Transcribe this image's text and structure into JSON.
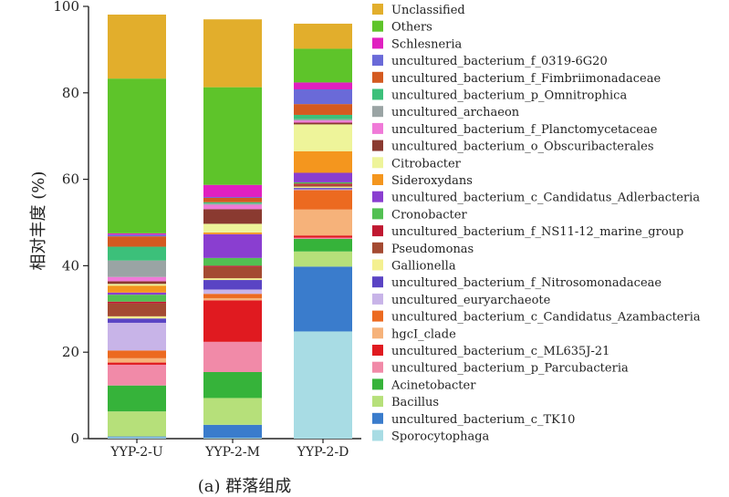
{
  "chart_data": {
    "type": "bar",
    "stacked": true,
    "categories": [
      "YYP-2-U",
      "YYP-2-M",
      "YYP-2-D"
    ],
    "ylabel": "相对丰度 (%)",
    "caption": "(a) 群落组成",
    "ylim": [
      0,
      100
    ],
    "yticks": [
      0,
      20,
      40,
      60,
      80,
      100
    ],
    "legend_position": "right",
    "series": [
      {
        "name": "Sporocytophaga",
        "color": "#a8dce4",
        "values": [
          0.3,
          0.2,
          24.8
        ]
      },
      {
        "name": "uncultured_bacterium_c_TK10",
        "color": "#3a7ccc",
        "values": [
          0.2,
          3.0,
          15.0
        ]
      },
      {
        "name": "Bacillus",
        "color": "#b6e07a",
        "values": [
          5.8,
          6.2,
          3.5
        ]
      },
      {
        "name": "Acinetobacter",
        "color": "#36b33a",
        "values": [
          6.0,
          6.0,
          2.9
        ]
      },
      {
        "name": "uncultured_bacterium_p_Parcubacteria",
        "color": "#f18aa8",
        "values": [
          4.8,
          7.0,
          0.3
        ]
      },
      {
        "name": "uncultured_bacterium_c_ML635J-21",
        "color": "#e01a20",
        "values": [
          0.5,
          9.6,
          0.5
        ]
      },
      {
        "name": "hgcI_clade",
        "color": "#f6b27a",
        "values": [
          1.0,
          0.5,
          6.0
        ]
      },
      {
        "name": "uncultured_bacterium_c_Candidatus_Azambacteria",
        "color": "#ec6a20",
        "values": [
          1.8,
          1.0,
          4.5
        ]
      },
      {
        "name": "uncultured_euryarchaeote",
        "color": "#c8b4e8",
        "values": [
          6.4,
          1.0,
          0.2
        ]
      },
      {
        "name": "uncultured_bacterium_f_Nitrosomonadaceae",
        "color": "#5a44c4",
        "values": [
          1.0,
          2.2,
          0.3
        ]
      },
      {
        "name": "Gallionella",
        "color": "#f4f090",
        "values": [
          0.5,
          0.4,
          0.3
        ]
      },
      {
        "name": "Pseudomonas",
        "color": "#a44a32",
        "values": [
          3.0,
          2.6,
          0.4
        ]
      },
      {
        "name": "uncultured_bacterium_f_NS11-12_marine_group",
        "color": "#c01830",
        "values": [
          0.4,
          0.3,
          0.3
        ]
      },
      {
        "name": "Cronobacter",
        "color": "#52c052",
        "values": [
          1.6,
          1.8,
          0.3
        ]
      },
      {
        "name": "uncultured_bacterium_c_Candidatus_Adlerbacteria",
        "color": "#8a3ed0",
        "values": [
          0.5,
          5.5,
          2.2
        ]
      },
      {
        "name": "Sideroxydans",
        "color": "#f4961e",
        "values": [
          1.6,
          0.4,
          5.0
        ]
      },
      {
        "name": "Citrobacter",
        "color": "#eef49a",
        "values": [
          0.4,
          2.0,
          6.2
        ]
      },
      {
        "name": "uncultured_bacterium_o_Obscuribacterales",
        "color": "#8a3a30",
        "values": [
          0.6,
          3.4,
          0.4
        ]
      },
      {
        "name": "uncultured_bacterium_f_Planctomycetaceae",
        "color": "#f07ad8",
        "values": [
          1.0,
          1.0,
          0.5
        ]
      },
      {
        "name": "uncultured_archaeon",
        "color": "#9aa4a4",
        "values": [
          3.8,
          0.3,
          0.3
        ]
      },
      {
        "name": "uncultured_bacterium_p_Omnitrophica",
        "color": "#3cc07a",
        "values": [
          3.2,
          0.3,
          1.0
        ]
      },
      {
        "name": "uncultured_bacterium_f_Fimbriimonadaceae",
        "color": "#d45a20",
        "values": [
          2.4,
          1.0,
          2.5
        ]
      },
      {
        "name": "uncultured_bacterium_f_0319-6G20",
        "color": "#6a6ad8",
        "values": [
          0.4,
          0.2,
          3.4
        ]
      },
      {
        "name": "Schlesneria",
        "color": "#e020c0",
        "values": [
          0.3,
          2.8,
          1.6
        ]
      },
      {
        "name": "Others",
        "color": "#5ec42a",
        "values": [
          35.8,
          22.6,
          7.8
        ]
      },
      {
        "name": "Unclassified",
        "color": "#e2ae2c",
        "values": [
          14.8,
          15.7,
          5.8
        ]
      }
    ]
  }
}
